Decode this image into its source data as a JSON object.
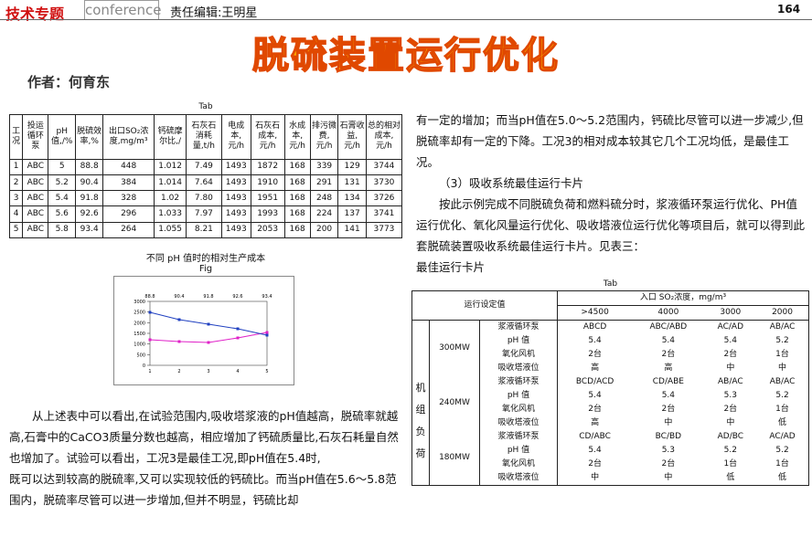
{
  "header": {
    "section": "技术专题",
    "tag": "conference",
    "editor": "责任编辑:王明星",
    "page": "164"
  },
  "title": "脱硫装置运行优化",
  "author": "作者：何育东",
  "table1": {
    "caption": "Tab",
    "headers": [
      "工况",
      "投运循环泵",
      "pH值,/%",
      "脱硫效率,%",
      "出口SO₂浓度,mg/m³",
      "钙硫摩尔比,/",
      "石灰石消耗量,t/h",
      "电成本,元/h",
      "石灰石成本,元/h",
      "水成本,元/h",
      "排污微费,元/h",
      "石膏收益,元/h",
      "总的相对成本,元/h"
    ],
    "rows": [
      [
        "1",
        "ABC",
        "5",
        "88.8",
        "448",
        "1.012",
        "7.49",
        "1493",
        "1872",
        "168",
        "339",
        "129",
        "3744"
      ],
      [
        "2",
        "ABC",
        "5.2",
        "90.4",
        "384",
        "1.014",
        "7.64",
        "1493",
        "1910",
        "168",
        "291",
        "131",
        "3730"
      ],
      [
        "3",
        "ABC",
        "5.4",
        "91.8",
        "328",
        "1.02",
        "7.80",
        "1493",
        "1951",
        "168",
        "248",
        "134",
        "3726"
      ],
      [
        "4",
        "ABC",
        "5.6",
        "92.6",
        "296",
        "1.033",
        "7.97",
        "1493",
        "1993",
        "168",
        "224",
        "137",
        "3741"
      ],
      [
        "5",
        "ABC",
        "5.8",
        "93.4",
        "264",
        "1.055",
        "8.21",
        "1493",
        "2053",
        "168",
        "200",
        "141",
        "3773"
      ]
    ]
  },
  "figure": {
    "title": "不同 pH 值时的相对生产成本",
    "label": "Fig",
    "chart": {
      "type": "line",
      "top_labels": [
        "88.8",
        "90.4",
        "91.8",
        "92.6",
        "93.4"
      ],
      "categories": [
        "1",
        "2",
        "3",
        "4",
        "5"
      ],
      "ylim": [
        0,
        3000
      ],
      "yticks": [
        0,
        500,
        1000,
        1500,
        2000,
        2500,
        3000
      ],
      "series": [
        {
          "color": "#e020c8",
          "values": [
            1200,
            1114,
            1071,
            1286,
            1543
          ]
        },
        {
          "color": "#2040c0",
          "values": [
            2486,
            2143,
            1929,
            1714,
            1414
          ]
        }
      ]
    }
  },
  "left_text": [
    "从上述表中可以看出,在试验范围内,吸收塔浆液的pH值越高，脱硫率就越高,石膏中的CaCO3质量分数也越高，相应增加了钙硫质量比,石灰石耗量自然也增加了。试验可以看出，工况3是最佳工况,即pH值在5.4时,",
    "既可以达到较高的脱硫率,又可以实现较低的钙硫比。而当pH值在5.6～5.8范围内，脱硫率尽管可以进一步增加,但并不明显，钙硫比却"
  ],
  "right_text": [
    "有一定的增加；而当pH值在5.0～5.2范围内，钙硫比尽管可以进一步减少,但脱硫率却有一定的下降。工况3的相对成本较其它几个工况均低，是最佳工况。",
    "（3）吸收系统最佳运行卡片",
    "按此示例完成不同脱硫负荷和燃料硫分时，浆液循环泵运行优化、PH值运行优化、氧化风量运行优化、吸收塔液位运行优化等项目后，就可以得到此套脱硫装置吸收系统最佳运行卡片。见表三：",
    "最佳运行卡片"
  ],
  "table2": {
    "caption": "Tab",
    "setting": "运行设定值",
    "inlet": "入口 SO₂浓度，mg/m³",
    "concentrations": [
      ">4500",
      "4000",
      "3000",
      "2000"
    ],
    "unit_label": "机组负荷",
    "groups": [
      {
        "load": "300MW",
        "rows": [
          [
            "浆液循环泵",
            "ABCD",
            "ABC/ABD",
            "AC/AD",
            "AB/AC"
          ],
          [
            "pH 值",
            "5.4",
            "5.4",
            "5.4",
            "5.2"
          ],
          [
            "氧化风机",
            "2台",
            "2台",
            "2台",
            "1台"
          ],
          [
            "吸收塔液位",
            "高",
            "高",
            "中",
            "中"
          ]
        ]
      },
      {
        "load": "240MW",
        "rows": [
          [
            "浆液循环泵",
            "BCD/ACD",
            "CD/ABE",
            "AB/AC",
            "AB/AC"
          ],
          [
            "pH 值",
            "5.4",
            "5.4",
            "5.3",
            "5.2"
          ],
          [
            "氧化风机",
            "2台",
            "2台",
            "2台",
            "1台"
          ],
          [
            "吸收塔液位",
            "高",
            "中",
            "中",
            "低"
          ]
        ]
      },
      {
        "load": "180MW",
        "rows": [
          [
            "浆液循环泵",
            "CD/ABC",
            "BC/BD",
            "AD/BC",
            "AC/AD"
          ],
          [
            "pH 值",
            "5.4",
            "5.3",
            "5.2",
            "5.2"
          ],
          [
            "氧化风机",
            "2台",
            "2台",
            "1台",
            "1台"
          ],
          [
            "吸收塔液位",
            "中",
            "中",
            "低",
            "低"
          ]
        ]
      }
    ]
  }
}
